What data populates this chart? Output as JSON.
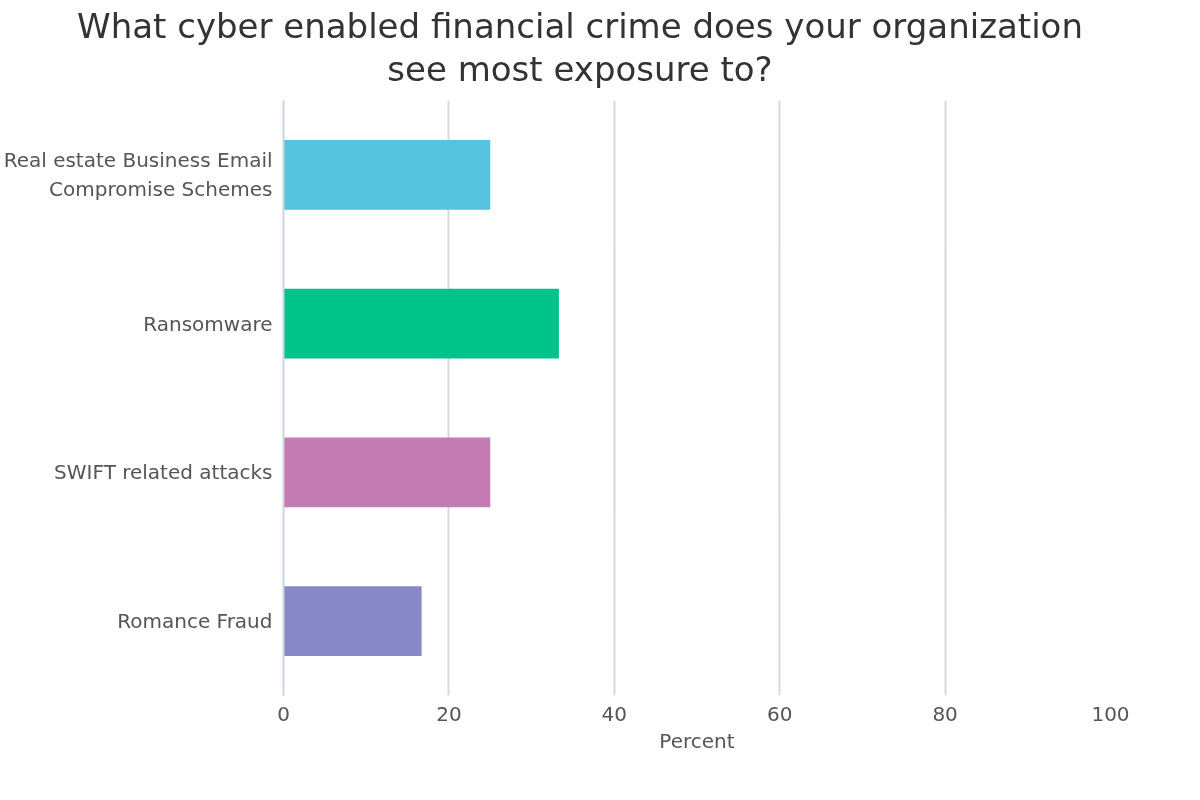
{
  "chart_data": {
    "type": "bar",
    "orientation": "horizontal",
    "title": "What cyber enabled financial crime does your organization see most exposure to?",
    "categories": [
      "Real estate Business Email Compromise Schemes",
      "Ransomware",
      "SWIFT related attacks",
      "Romance Fraud"
    ],
    "values": [
      25,
      33.3,
      25,
      16.7
    ],
    "colors": [
      "#56c3de",
      "#00c389",
      "#c47bb3",
      "#8689c6"
    ],
    "xlabel": "Percent",
    "xlim": [
      0,
      100
    ],
    "xticks": [
      0,
      20,
      40,
      60,
      80,
      100
    ],
    "grid": "x"
  }
}
